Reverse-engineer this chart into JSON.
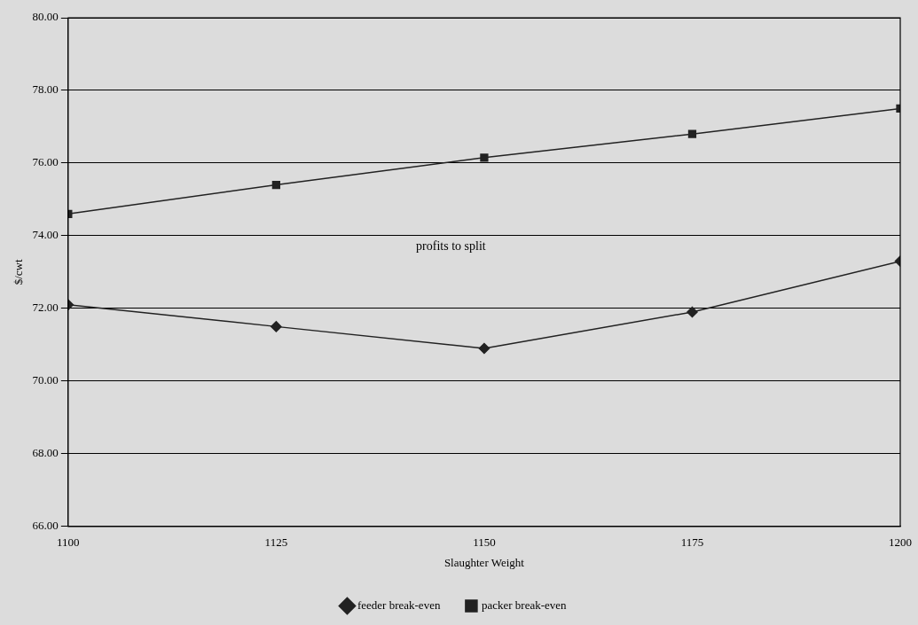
{
  "chart_data": {
    "type": "line",
    "xlabel": "Slaughter Weight",
    "ylabel": "$/cwt",
    "x": [
      1100,
      1125,
      1150,
      1175,
      1200
    ],
    "series": [
      {
        "name": "feeder break-even",
        "color": "#222222",
        "marker": "diamond",
        "values": [
          72.1,
          71.5,
          70.9,
          71.9,
          73.3
        ]
      },
      {
        "name": "packer break-even",
        "color": "#222222",
        "marker": "square",
        "values": [
          74.6,
          75.4,
          76.15,
          76.8,
          77.5
        ]
      }
    ],
    "xlim": [
      1100,
      1200
    ],
    "xticks": [
      1100,
      1125,
      1150,
      1175,
      1200
    ],
    "ylim": [
      66,
      80
    ],
    "yticks": [
      {
        "value": 66,
        "label": "66.00"
      },
      {
        "value": 68,
        "label": "68.00"
      },
      {
        "value": 70,
        "label": "70.00"
      },
      {
        "value": 72,
        "label": "72.00"
      },
      {
        "value": 74,
        "label": "74.00"
      },
      {
        "value": 76,
        "label": "76.00"
      },
      {
        "value": 78,
        "label": "78.00"
      },
      {
        "value": 80,
        "label": "80.00"
      }
    ],
    "grid": "y",
    "legend": "bottom",
    "line_style": "solid",
    "annotations": [
      "profits to split"
    ]
  }
}
